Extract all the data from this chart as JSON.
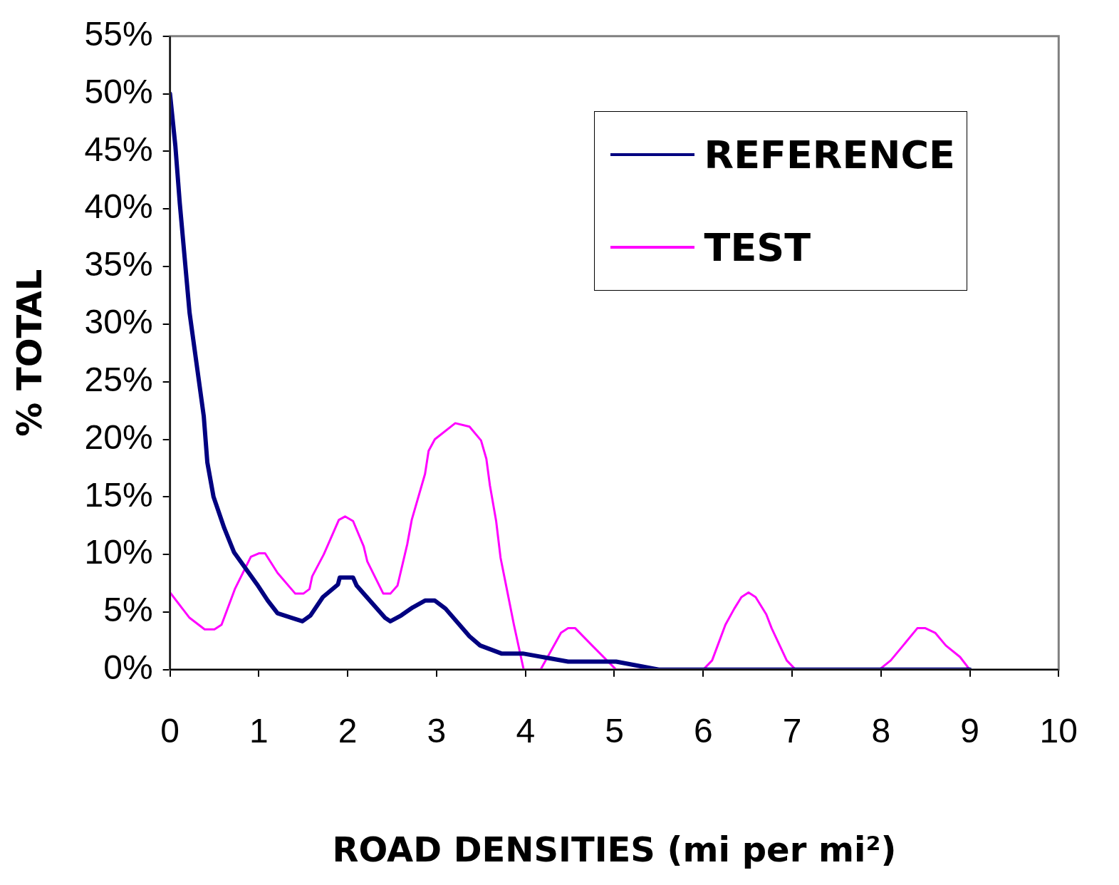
{
  "chart_data": {
    "type": "line",
    "xlabel": "ROAD DENSITIES (mi per mi²)",
    "ylabel": "% TOTAL",
    "xlim": [
      0,
      10
    ],
    "xticks": [
      0,
      1,
      2,
      3,
      4,
      5,
      6,
      7,
      8,
      9,
      10
    ],
    "ylim": [
      0,
      55
    ],
    "yticks": [
      {
        "value": 0,
        "label": "0%"
      },
      {
        "value": 5,
        "label": "5%"
      },
      {
        "value": 10,
        "label": "10%"
      },
      {
        "value": 15,
        "label": "15%"
      },
      {
        "value": 20,
        "label": "20%"
      },
      {
        "value": 25,
        "label": "25%"
      },
      {
        "value": 30,
        "label": "30%"
      },
      {
        "value": 35,
        "label": "35%"
      },
      {
        "value": 40,
        "label": "40%"
      },
      {
        "value": 45,
        "label": "45%"
      },
      {
        "value": 50,
        "label": "50%"
      },
      {
        "value": 55,
        "label": "55%"
      }
    ],
    "grid": false,
    "legend": "top right",
    "marker": "none",
    "line_style": "solid",
    "series": [
      {
        "name": "REFERENCE",
        "color": "#000080",
        "x": [
          0,
          0.06,
          0.11,
          0.22,
          0.38,
          0.42,
          0.49,
          0.61,
          0.72,
          0.98,
          1.1,
          1.21,
          1.37,
          1.49,
          1.58,
          1.72,
          1.89,
          1.91,
          2.06,
          2.1,
          2.42,
          2.48,
          2.6,
          2.73,
          2.87,
          2.98,
          3.1,
          3.37,
          3.49,
          3.73,
          3.97,
          4.48,
          5.02,
          5.5,
          9
        ],
        "values": [
          50,
          45.5,
          40.5,
          31,
          22,
          18,
          15,
          12.3,
          10.2,
          7.4,
          6,
          4.9,
          4.5,
          4.2,
          4.7,
          6.3,
          7.4,
          8,
          8,
          7.3,
          4.5,
          4.2,
          4.7,
          5.4,
          6,
          6,
          5.3,
          2.9,
          2.1,
          1.4,
          1.4,
          0.7,
          0.7,
          0,
          0
        ]
      },
      {
        "name": "TEST",
        "color": "#ff00ff",
        "x": [
          0,
          0.22,
          0.39,
          0.5,
          0.58,
          0.73,
          0.91,
          1,
          1.07,
          1.21,
          1.41,
          1.5,
          1.57,
          1.6,
          1.73,
          1.9,
          1.97,
          2.06,
          2.18,
          2.22,
          2.4,
          2.48,
          2.56,
          2.67,
          2.72,
          2.87,
          2.91,
          2.98,
          3.21,
          3.37,
          3.5,
          3.56,
          3.6,
          3.67,
          3.72,
          3.79,
          3.87,
          3.98,
          4.17,
          4.4,
          4.48,
          4.56,
          4.75,
          5.02,
          6,
          6.1,
          6.25,
          6.35,
          6.43,
          6.51,
          6.59,
          6.71,
          6.77,
          6.94,
          7.04,
          7.98,
          8.11,
          8.25,
          8.41,
          8.5,
          8.61,
          8.73,
          8.89,
          9
        ],
        "values": [
          6.7,
          4.5,
          3.5,
          3.5,
          3.9,
          7,
          9.8,
          10.1,
          10.1,
          8.4,
          6.6,
          6.6,
          7,
          8.1,
          10,
          13,
          13.3,
          12.9,
          10.7,
          9.4,
          6.6,
          6.6,
          7.3,
          10.9,
          13,
          17,
          19,
          20,
          21.4,
          21.1,
          19.9,
          18.3,
          16,
          12.9,
          9.7,
          7,
          3.9,
          0,
          0,
          3.2,
          3.6,
          3.6,
          2.1,
          0,
          0,
          0.8,
          3.9,
          5.3,
          6.3,
          6.7,
          6.3,
          4.8,
          3.6,
          0.8,
          0,
          0,
          0.8,
          2.1,
          3.6,
          3.6,
          3.2,
          2.1,
          1.1,
          0
        ]
      }
    ]
  }
}
